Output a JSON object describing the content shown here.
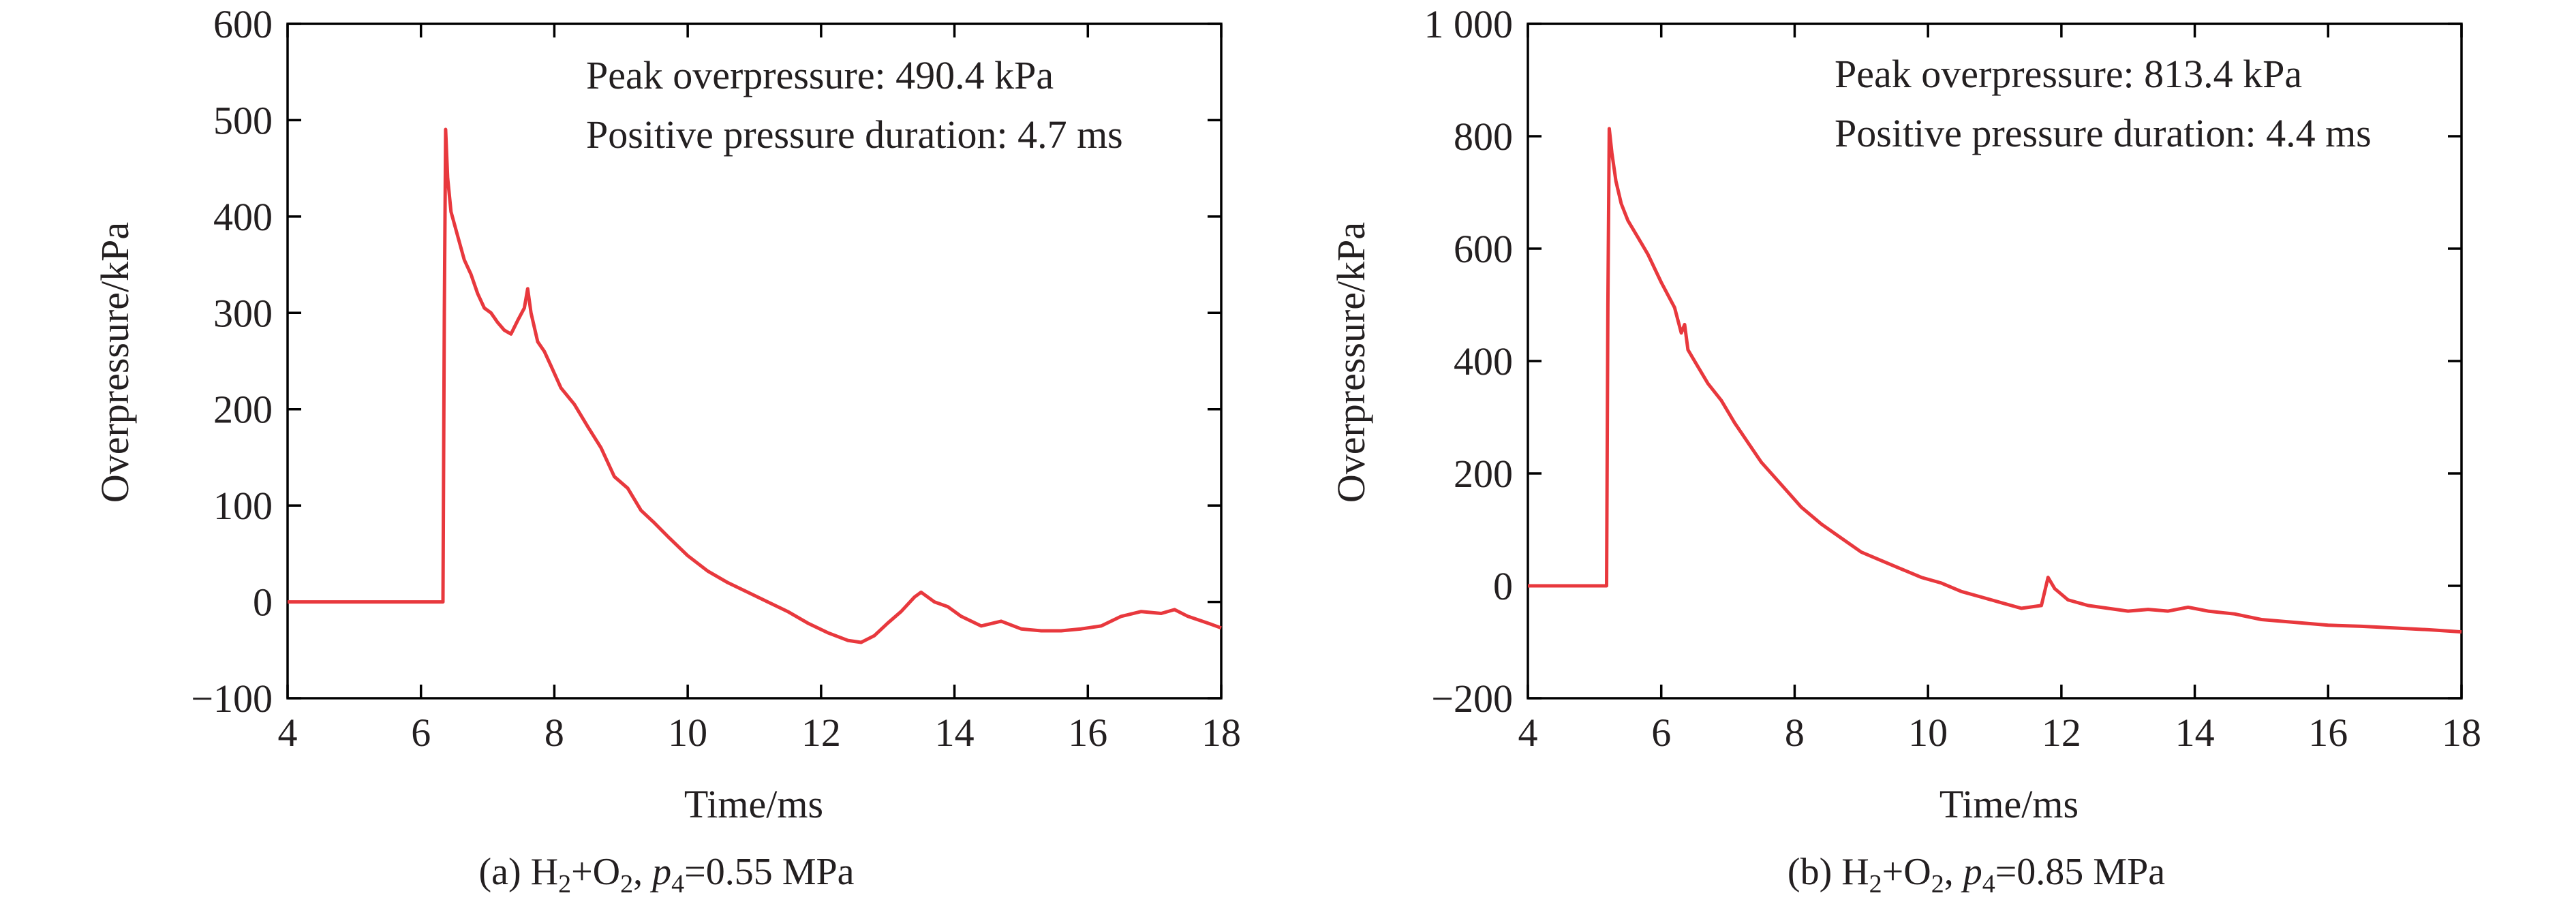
{
  "chart_data": [
    {
      "type": "line",
      "xlabel": "Time/ms",
      "ylabel": "Overpressure/kPa",
      "xlim": [
        4,
        18
      ],
      "ylim": [
        -100,
        600
      ],
      "xticks": [
        4,
        6,
        8,
        10,
        12,
        14,
        16,
        18
      ],
      "xtick_labels": [
        "4",
        "6",
        "8",
        "10",
        "12",
        "14",
        "16",
        "18"
      ],
      "yticks": [
        -100,
        0,
        100,
        200,
        300,
        400,
        500,
        600
      ],
      "ytick_labels": [
        "−100",
        "0",
        "100",
        "200",
        "300",
        "400",
        "500",
        "600"
      ],
      "annotations": [
        "Peak overpressure: 490.4 kPa",
        "Positive pressure duration: 4.7 ms"
      ],
      "caption": {
        "prefix": "(a) H",
        "sub1": "2",
        "mid": "+O",
        "sub2": "2",
        "sep": ", ",
        "var": "p",
        "sub3": "4",
        "suffix": "=0.55 MPa"
      },
      "series_color": "#e8383d",
      "series": [
        {
          "x": [
            4.0,
            5.0,
            6.0,
            6.33,
            6.35,
            6.37,
            6.4,
            6.45,
            6.55,
            6.65,
            6.75,
            6.85,
            6.95,
            7.05,
            7.15,
            7.25,
            7.35,
            7.45,
            7.55,
            7.6,
            7.65,
            7.7,
            7.75,
            7.85,
            7.95,
            8.1,
            8.3,
            8.5,
            8.7,
            8.9,
            9.1,
            9.3,
            9.5,
            9.7,
            10.0,
            10.3,
            10.6,
            10.9,
            11.2,
            11.5,
            11.8,
            12.1,
            12.4,
            12.6,
            12.8,
            13.0,
            13.2,
            13.4,
            13.5,
            13.7,
            13.9,
            14.1,
            14.4,
            14.7,
            15.0,
            15.3,
            15.6,
            15.9,
            16.2,
            16.5,
            16.8,
            17.1,
            17.3,
            17.5,
            17.8,
            18.0
          ],
          "y": [
            0,
            0,
            0,
            0,
            300,
            490.4,
            440,
            405,
            380,
            355,
            340,
            320,
            305,
            300,
            290,
            282,
            278,
            292,
            305,
            325,
            300,
            285,
            270,
            260,
            245,
            222,
            205,
            182,
            160,
            130,
            118,
            95,
            82,
            68,
            48,
            32,
            20,
            10,
            0,
            -10,
            -22,
            -32,
            -40,
            -42,
            -35,
            -22,
            -10,
            5,
            10,
            0,
            -5,
            -15,
            -25,
            -20,
            -28,
            -30,
            -30,
            -28,
            -25,
            -15,
            -10,
            -12,
            -8,
            -15,
            -22,
            -27
          ]
        }
      ]
    },
    {
      "type": "line",
      "xlabel": "Time/ms",
      "ylabel": "Overpressure/kPa",
      "xlim": [
        4,
        18
      ],
      "ylim": [
        -200,
        1000
      ],
      "xticks": [
        4,
        6,
        8,
        10,
        12,
        14,
        16,
        18
      ],
      "xtick_labels": [
        "4",
        "6",
        "8",
        "10",
        "12",
        "14",
        "16",
        "18"
      ],
      "yticks": [
        -200,
        0,
        200,
        400,
        600,
        800,
        1000
      ],
      "ytick_labels": [
        "−200",
        "0",
        "200",
        "400",
        "600",
        "800",
        "1 000"
      ],
      "annotations": [
        "Peak overpressure: 813.4 kPa",
        "Positive pressure duration: 4.4 ms"
      ],
      "caption": {
        "prefix": "(b) H",
        "sub1": "2",
        "mid": "+O",
        "sub2": "2",
        "sep": ", ",
        "var": "p",
        "sub3": "4",
        "suffix": "=0.85 MPa"
      },
      "series_color": "#e8383d",
      "series": [
        {
          "x": [
            4.0,
            4.5,
            5.0,
            5.18,
            5.2,
            5.22,
            5.26,
            5.32,
            5.4,
            5.5,
            5.65,
            5.8,
            6.0,
            6.2,
            6.3,
            6.35,
            6.4,
            6.5,
            6.7,
            6.9,
            7.1,
            7.3,
            7.5,
            7.8,
            8.1,
            8.4,
            8.7,
            9.0,
            9.3,
            9.6,
            9.9,
            10.2,
            10.5,
            10.8,
            11.1,
            11.4,
            11.7,
            11.8,
            11.9,
            12.1,
            12.4,
            12.7,
            13.0,
            13.3,
            13.6,
            13.9,
            14.2,
            14.6,
            15.0,
            15.5,
            16.0,
            16.5,
            17.0,
            17.5,
            18.0
          ],
          "y": [
            0,
            0,
            0,
            0,
            500,
            813.4,
            770,
            720,
            680,
            650,
            620,
            590,
            540,
            495,
            450,
            465,
            420,
            400,
            360,
            330,
            290,
            255,
            220,
            180,
            140,
            110,
            85,
            60,
            45,
            30,
            15,
            5,
            -10,
            -20,
            -30,
            -40,
            -35,
            15,
            -5,
            -25,
            -35,
            -40,
            -45,
            -42,
            -45,
            -38,
            -45,
            -50,
            -60,
            -65,
            -70,
            -72,
            -75,
            -78,
            -82
          ]
        }
      ]
    }
  ]
}
